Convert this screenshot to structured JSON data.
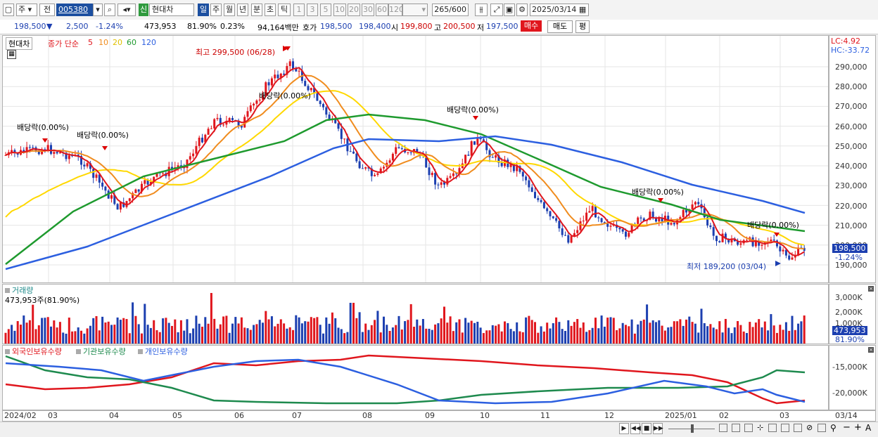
{
  "toolbar": {
    "period_type": "주",
    "scope": "전",
    "code": "005380",
    "badge": "신",
    "name": "현대차",
    "periods": [
      "일",
      "주",
      "월",
      "년",
      "분",
      "초",
      "틱"
    ],
    "numbers": [
      "1",
      "3",
      "5",
      "10",
      "20",
      "30",
      "60",
      "120"
    ],
    "count": "265",
    "count_total": "/600",
    "date": "2025/03/14"
  },
  "quote": {
    "price": "198,500",
    "change": "2,500",
    "rate": "-1.24%",
    "volume": "473,953",
    "vol_ratio": "81.90%",
    "turnover": "0.23%",
    "amount": "94,164백만",
    "ask_label": "호가",
    "ask": "198,500",
    "bid": "198,400",
    "open_label": "시",
    "open": "199,800",
    "high_label": "고",
    "high": "200,500",
    "low_label": "저",
    "low": "197,500",
    "buy": "매수",
    "sell": "매도",
    "eval": "평"
  },
  "price_panel": {
    "title": "현대차",
    "ma_label": "종가 단순",
    "ma": [
      {
        "v": "5",
        "c": "#e0161d"
      },
      {
        "v": "10",
        "c": "#f08c1e"
      },
      {
        "v": "20",
        "c": "#ffd800"
      },
      {
        "v": "60",
        "c": "#1e9a2e"
      },
      {
        "v": "120",
        "c": "#2c5fe0"
      }
    ],
    "high_ann": "최고 299,500 (06/28)",
    "low_ann": "최저 189,200 (03/04)",
    "dividend": "배당락(0.00%)",
    "lc": "LC:4.92",
    "hc": "HC:-33.72",
    "y_ticks": [
      "290,000",
      "280,000",
      "270,000",
      "260,000",
      "250,000",
      "240,000",
      "230,000",
      "220,000",
      "210,000",
      "200,000",
      "190,000"
    ],
    "last_price": "198,500",
    "last_rate": "-1.24%"
  },
  "volume_panel": {
    "title": "거래량",
    "info": "473,953주(81.90%)",
    "y_ticks": [
      "3,000K",
      "2,000K",
      "1,000K"
    ],
    "last": "473,953",
    "last_pct": "81.90%"
  },
  "holdings_panel": {
    "items": [
      {
        "label": "외국인보유수량",
        "c": "#e0161d"
      },
      {
        "label": "기관보유수량",
        "c": "#1e8a4e"
      },
      {
        "label": "개인보유수량",
        "c": "#2c5fe0"
      }
    ],
    "y_ticks": [
      "-15,000K",
      "-20,000K"
    ]
  },
  "x_axis": [
    "2024/02",
    "03",
    "04",
    "05",
    "06",
    "07",
    "08",
    "09",
    "10",
    "11",
    "12",
    "2025/01",
    "02",
    "03"
  ],
  "x_axis_right": "03/14",
  "colors": {
    "up": "#e0161d",
    "down": "#1c3fb0",
    "ma5": "#e0161d",
    "ma10": "#f08c1e",
    "ma20": "#ffd800",
    "ma60": "#1e9a2e",
    "ma120": "#2c5fe0"
  }
}
